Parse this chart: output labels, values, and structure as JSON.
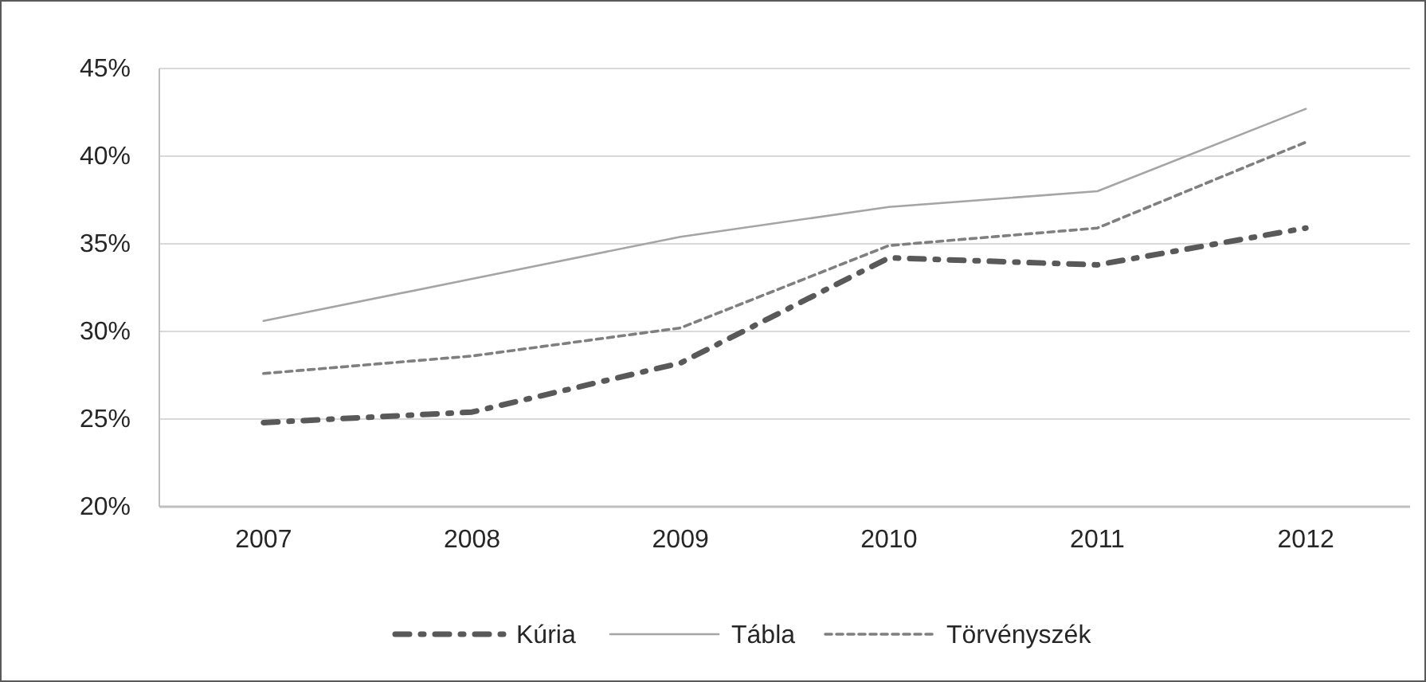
{
  "chart_data": {
    "type": "line",
    "categories": [
      "2007",
      "2008",
      "2009",
      "2010",
      "2011",
      "2012"
    ],
    "series": [
      {
        "name": "Kúria",
        "color": "#595959",
        "line_style": "dashdot",
        "values": [
          24.8,
          25.4,
          28.2,
          34.2,
          33.8,
          35.9
        ]
      },
      {
        "name": "Tábla",
        "color": "#a5a5a5",
        "line_style": "solid",
        "values": [
          30.6,
          33.0,
          35.4,
          37.1,
          38.0,
          42.7
        ]
      },
      {
        "name": "Törvényszék",
        "color": "#7f7f7f",
        "line_style": "dashed",
        "values": [
          27.6,
          28.6,
          30.2,
          34.9,
          35.9,
          40.8
        ]
      }
    ],
    "ylim": [
      20,
      45
    ],
    "yticks": [
      {
        "value": 20,
        "label": "20%"
      },
      {
        "value": 25,
        "label": "25%"
      },
      {
        "value": 30,
        "label": "30%"
      },
      {
        "value": 35,
        "label": "35%"
      },
      {
        "value": 40,
        "label": "40%"
      },
      {
        "value": 45,
        "label": "45%"
      }
    ],
    "grid": "y",
    "legend": "bottom",
    "marker": "none"
  }
}
